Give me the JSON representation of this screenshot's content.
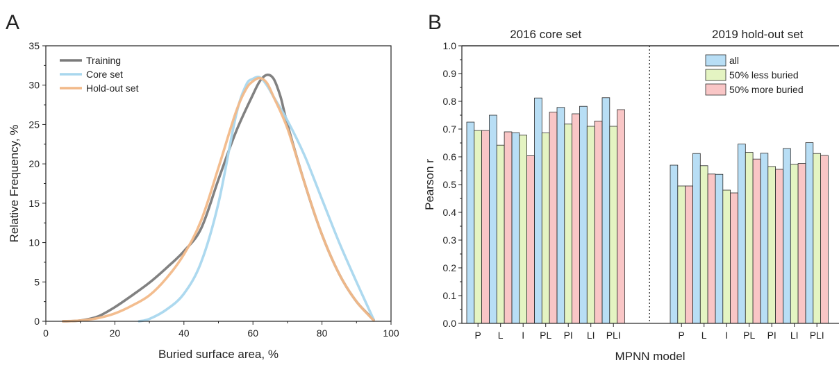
{
  "chart_data": [
    {
      "type": "line",
      "panel": "A",
      "xlabel": "Buried surface area, %",
      "ylabel": "Relative Frequency, %",
      "xlim": [
        0,
        100
      ],
      "ylim": [
        0,
        35
      ],
      "xticks": [
        "0",
        "20",
        "40",
        "60",
        "80",
        "100"
      ],
      "yticks": [
        "0",
        "5",
        "10",
        "15",
        "20",
        "25",
        "30",
        "35"
      ],
      "legend_position": "top-left",
      "series": [
        {
          "name": "Training",
          "color": "#7a7a7a",
          "points": [
            [
              5,
              0
            ],
            [
              10,
              0.1
            ],
            [
              15,
              0.6
            ],
            [
              20,
              1.8
            ],
            [
              25,
              3.3
            ],
            [
              30,
              4.9
            ],
            [
              35,
              6.8
            ],
            [
              40,
              8.9
            ],
            [
              45,
              11.8
            ],
            [
              50,
              18
            ],
            [
              55,
              24
            ],
            [
              60,
              28.8
            ],
            [
              62,
              30.5
            ],
            [
              64,
              31.3
            ],
            [
              66,
              30.8
            ],
            [
              68,
              28.5
            ],
            [
              70,
              25
            ],
            [
              75,
              17.5
            ],
            [
              80,
              11
            ],
            [
              85,
              6
            ],
            [
              90,
              2.5
            ],
            [
              95,
              0.2
            ]
          ]
        },
        {
          "name": "Core set",
          "color": "#a9d7ee",
          "points": [
            [
              27,
              0
            ],
            [
              30,
              0.3
            ],
            [
              35,
              1.5
            ],
            [
              40,
              3.5
            ],
            [
              45,
              7.5
            ],
            [
              50,
              15
            ],
            [
              55,
              26
            ],
            [
              58,
              30
            ],
            [
              60,
              30.8
            ],
            [
              62,
              31
            ],
            [
              64,
              30
            ],
            [
              66,
              28.5
            ],
            [
              70,
              25.5
            ],
            [
              75,
              21
            ],
            [
              80,
              15.5
            ],
            [
              85,
              10
            ],
            [
              90,
              5
            ],
            [
              95,
              0.2
            ]
          ]
        },
        {
          "name": "Hold-out set",
          "color": "#f2b989",
          "points": [
            [
              5,
              0
            ],
            [
              10,
              0.1
            ],
            [
              15,
              0.4
            ],
            [
              20,
              1
            ],
            [
              25,
              2
            ],
            [
              30,
              3.3
            ],
            [
              35,
              5.5
            ],
            [
              40,
              8.5
            ],
            [
              45,
              12.8
            ],
            [
              50,
              19.5
            ],
            [
              55,
              26.5
            ],
            [
              58,
              29.5
            ],
            [
              60,
              30.5
            ],
            [
              62,
              30.9
            ],
            [
              64,
              30.3
            ],
            [
              66,
              28.5
            ],
            [
              70,
              24.5
            ],
            [
              75,
              17.5
            ],
            [
              80,
              11
            ],
            [
              85,
              6
            ],
            [
              90,
              2.5
            ],
            [
              95,
              0.1
            ]
          ]
        }
      ]
    },
    {
      "type": "bar",
      "panel": "B",
      "xlabel": "MPNN model",
      "ylabel": "Pearson r",
      "ylim": [
        0,
        1.0
      ],
      "yticks": [
        "0.0",
        "0.1",
        "0.2",
        "0.3",
        "0.4",
        "0.5",
        "0.6",
        "0.7",
        "0.8",
        "0.9",
        "1.0"
      ],
      "legend_position": "top-right",
      "groups": [
        {
          "title": "2016 core set",
          "categories": [
            "P",
            "L",
            "I",
            "PL",
            "PI",
            "LI",
            "PLI"
          ]
        },
        {
          "title": "2019 hold-out set",
          "categories": [
            "P",
            "L",
            "I",
            "PL",
            "PI",
            "LI",
            "PLI"
          ]
        }
      ],
      "series": [
        {
          "name": "all",
          "color": "#b8def5",
          "values": [
            0.725,
            0.75,
            0.687,
            0.812,
            0.778,
            0.782,
            0.813,
            0.57,
            0.612,
            0.537,
            0.646,
            0.613,
            0.63,
            0.651
          ]
        },
        {
          "name": "50% less buried",
          "color": "#e4f4c2",
          "values": [
            0.695,
            0.642,
            0.678,
            0.686,
            0.718,
            0.71,
            0.71,
            0.495,
            0.568,
            0.48,
            0.616,
            0.565,
            0.573,
            0.612
          ]
        },
        {
          "name": "50% more buried",
          "color": "#f9c6c6",
          "values": [
            0.695,
            0.69,
            0.604,
            0.761,
            0.755,
            0.729,
            0.77,
            0.495,
            0.538,
            0.47,
            0.592,
            0.555,
            0.576,
            0.605
          ]
        }
      ]
    }
  ],
  "panels": {
    "a_letter": "A",
    "b_letter": "B"
  }
}
